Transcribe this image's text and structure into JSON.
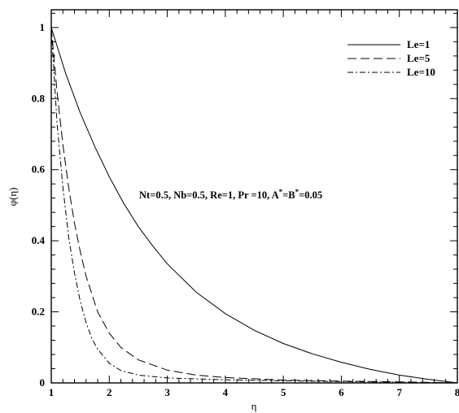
{
  "chart_data": {
    "type": "line",
    "xlabel": "η",
    "ylabel": "φ(η)",
    "xlim": [
      1,
      8
    ],
    "ylim": [
      0,
      1.05
    ],
    "x_ticks": [
      "1",
      "2",
      "3",
      "4",
      "5",
      "6",
      "7",
      "8"
    ],
    "y_ticks": [
      "0",
      "0.2",
      "0.4",
      "0.6",
      "0.8",
      "1"
    ],
    "grid": false,
    "legend_position": "top-right",
    "annotation": {
      "prefix": "Nt=0.5, Nb=0.5, Re=1, Pr =10, A",
      "sup1": "*",
      "middle": "=B",
      "sup2": "*",
      "suffix": "=0.05"
    },
    "series": [
      {
        "name": "Le=1",
        "dash": "none",
        "x": [
          1,
          1.25,
          1.5,
          1.75,
          2,
          2.25,
          2.5,
          2.75,
          3,
          3.5,
          4,
          4.5,
          5,
          5.5,
          6,
          6.5,
          7,
          7.5,
          8
        ],
        "y": [
          1,
          0.87,
          0.76,
          0.665,
          0.58,
          0.505,
          0.44,
          0.385,
          0.335,
          0.255,
          0.195,
          0.148,
          0.111,
          0.082,
          0.058,
          0.038,
          0.022,
          0.01,
          0
        ]
      },
      {
        "name": "Le=5",
        "dash": "11,5",
        "x": [
          1,
          1.1,
          1.2,
          1.3,
          1.4,
          1.5,
          1.6,
          1.7,
          1.8,
          2,
          2.2,
          2.5,
          3,
          3.5,
          4,
          5,
          6,
          7,
          8
        ],
        "y": [
          1,
          0.82,
          0.67,
          0.55,
          0.45,
          0.37,
          0.3,
          0.25,
          0.2,
          0.14,
          0.1,
          0.065,
          0.036,
          0.022,
          0.015,
          0.008,
          0.005,
          0.003,
          0
        ]
      },
      {
        "name": "Le=10",
        "dash": "7,3,2,3",
        "x": [
          1,
          1.1,
          1.2,
          1.3,
          1.4,
          1.5,
          1.6,
          1.7,
          1.8,
          1.9,
          2,
          2.2,
          2.5,
          3,
          4,
          5,
          6,
          7,
          8
        ],
        "y": [
          1,
          0.73,
          0.55,
          0.41,
          0.31,
          0.23,
          0.17,
          0.125,
          0.095,
          0.075,
          0.055,
          0.035,
          0.022,
          0.014,
          0.009,
          0.006,
          0.004,
          0.002,
          0
        ]
      }
    ]
  }
}
